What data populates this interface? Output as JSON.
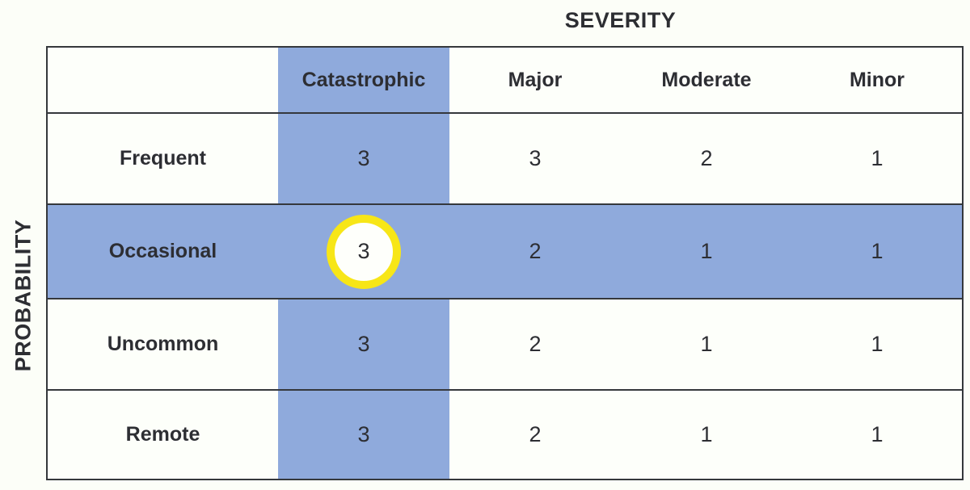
{
  "chart_data": {
    "type": "table",
    "subtype": "risk-assessment-matrix",
    "x_axis_title": "SEVERITY",
    "y_axis_title": "PROBABILITY",
    "columns": [
      "Catastrophic",
      "Major",
      "Moderate",
      "Minor"
    ],
    "rows": [
      "Frequent",
      "Occasional",
      "Uncommon",
      "Remote"
    ],
    "values": [
      [
        3,
        3,
        2,
        1
      ],
      [
        3,
        2,
        1,
        1
      ],
      [
        3,
        2,
        1,
        1
      ],
      [
        3,
        2,
        1,
        1
      ]
    ],
    "highlighted_column": "Catastrophic",
    "highlighted_row": "Occasional",
    "circled_cell": {
      "row": "Occasional",
      "column": "Catastrophic",
      "value": 3
    },
    "legend_position": "none",
    "grid": "row-separators-only",
    "colors": {
      "highlight_blue": "#8FAADC",
      "circle_ring_yellow": "#F7E617",
      "circle_fill": "#FEFFFB",
      "border": "#35383C",
      "text": "#2D2E33",
      "background": "#FCFEF8"
    }
  }
}
